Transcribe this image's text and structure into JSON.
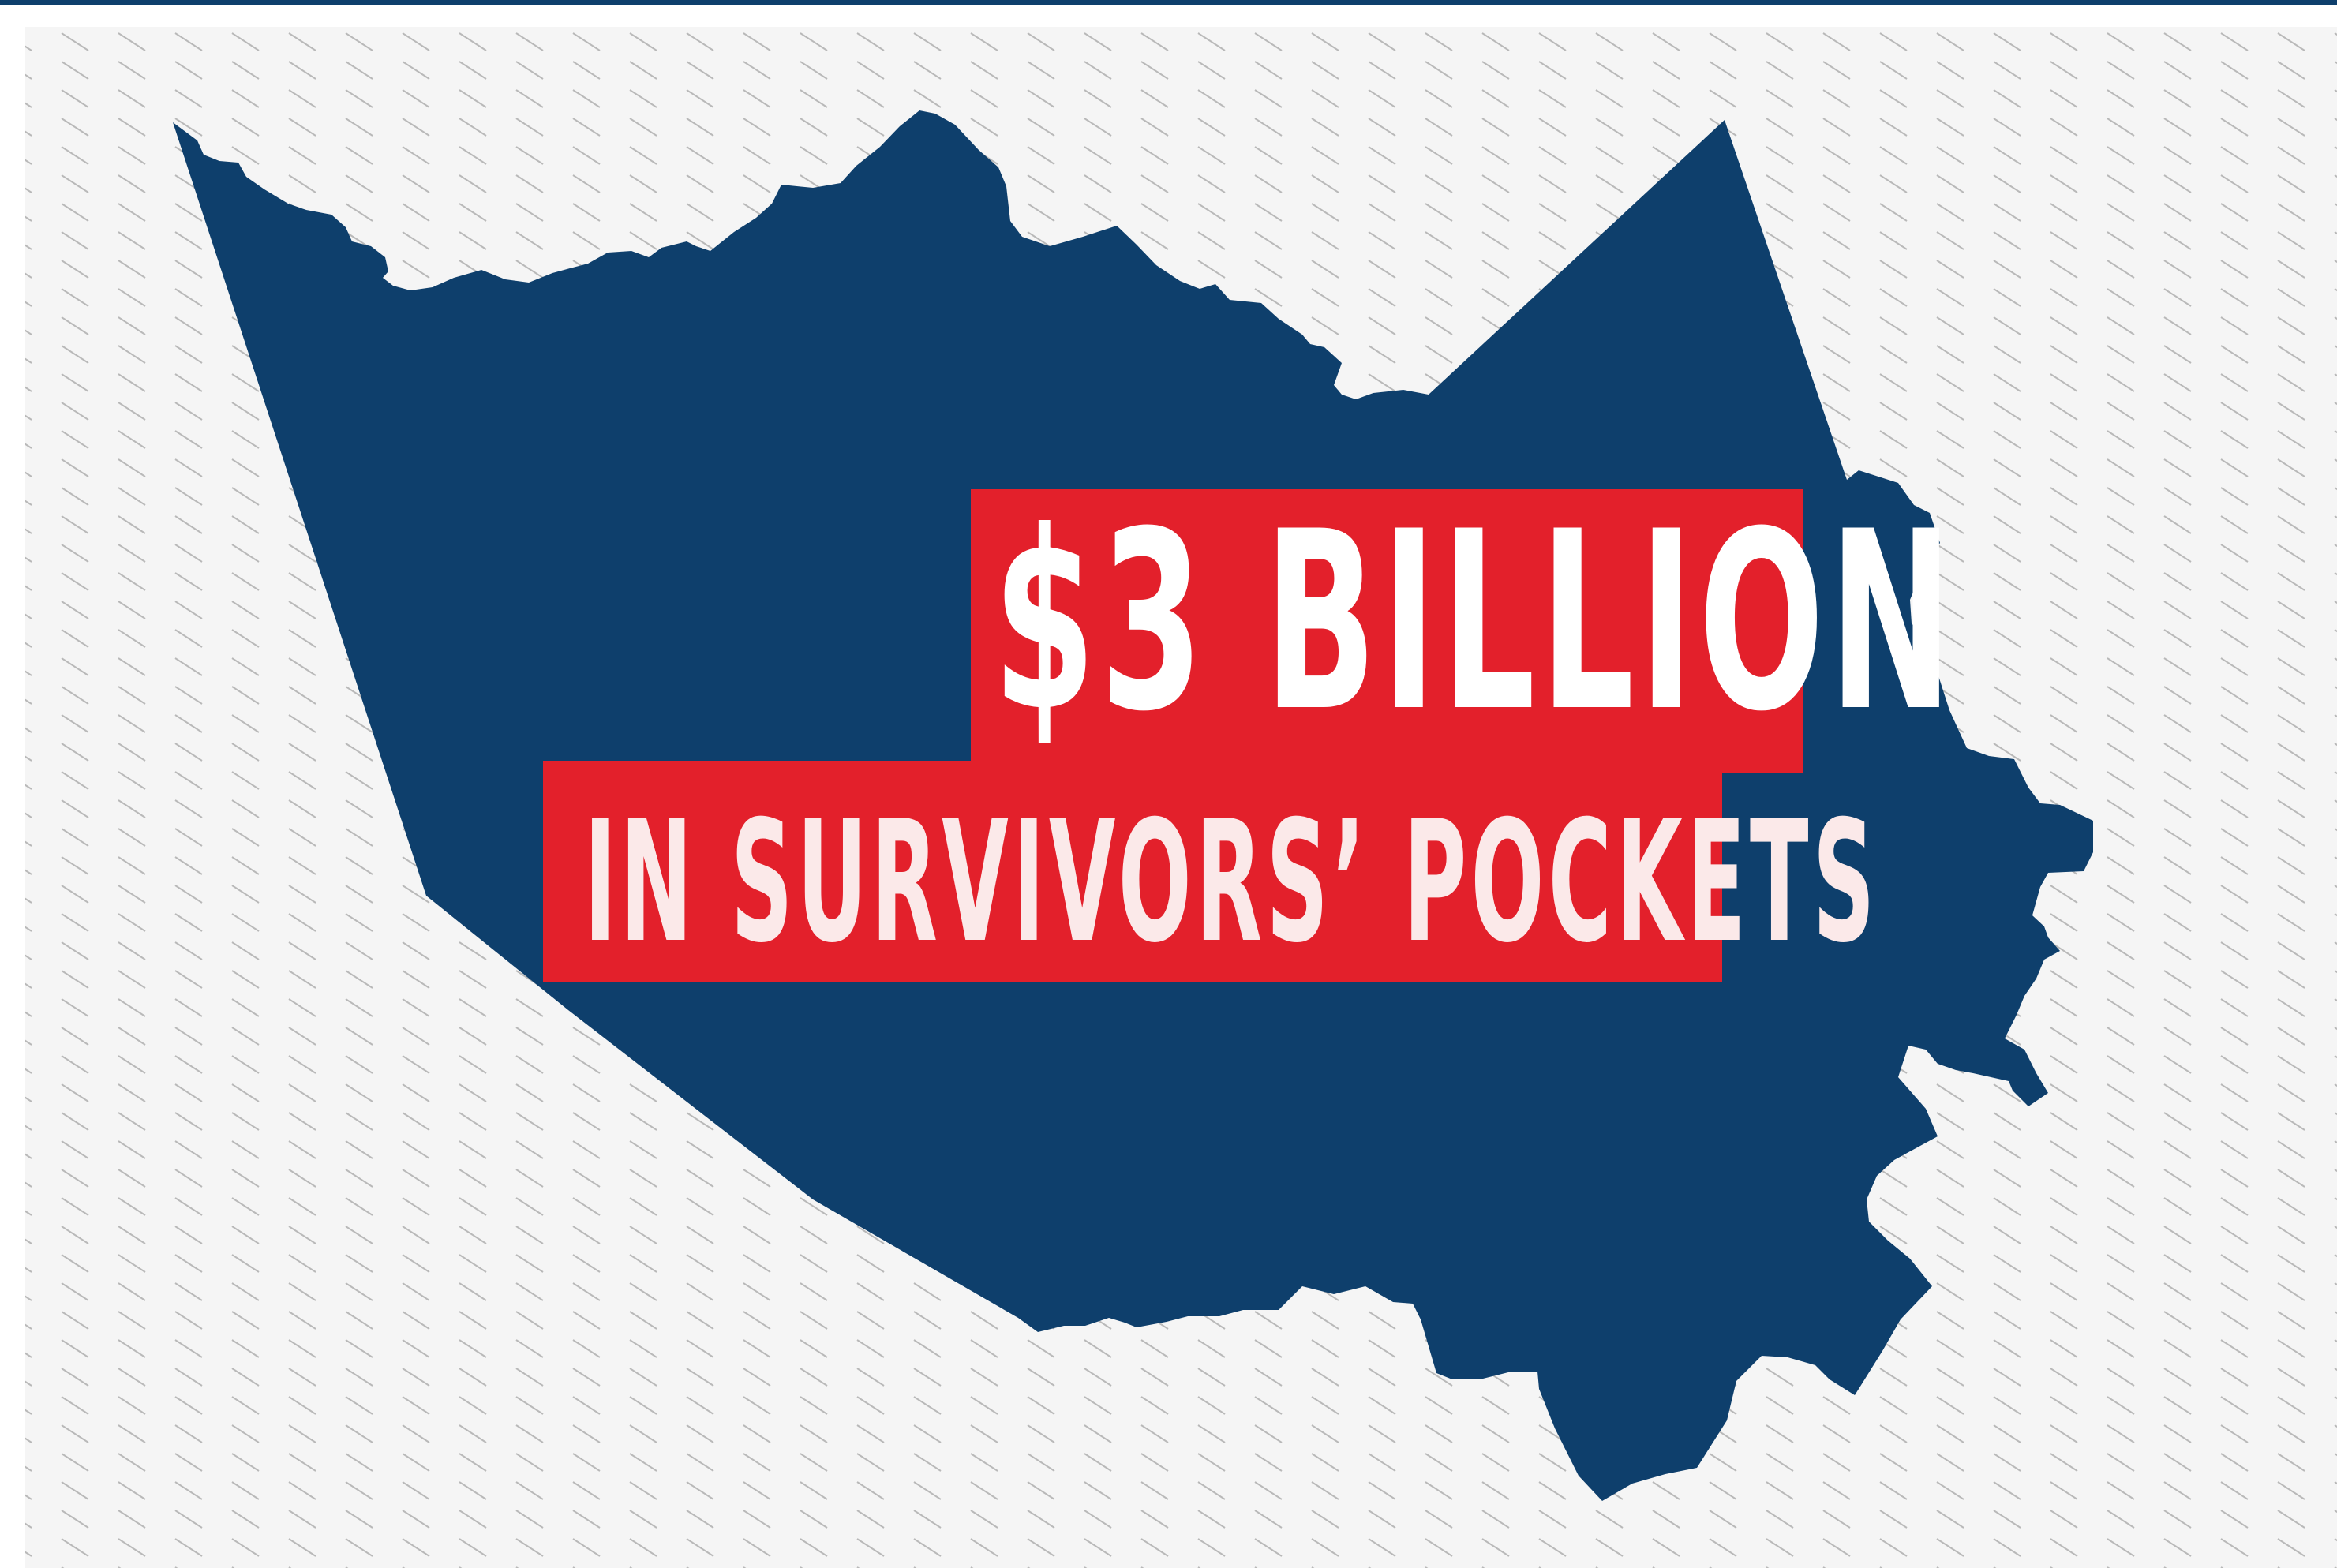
{
  "headline": {
    "amount": "$3 BILLION",
    "subline": "IN SURVIVORS’ POCKETS"
  },
  "colors": {
    "map_fill": "#0e3f6c",
    "banner_red": "#e3202b",
    "background": "#f5f5f5",
    "hatch": "#b9b9b9"
  }
}
